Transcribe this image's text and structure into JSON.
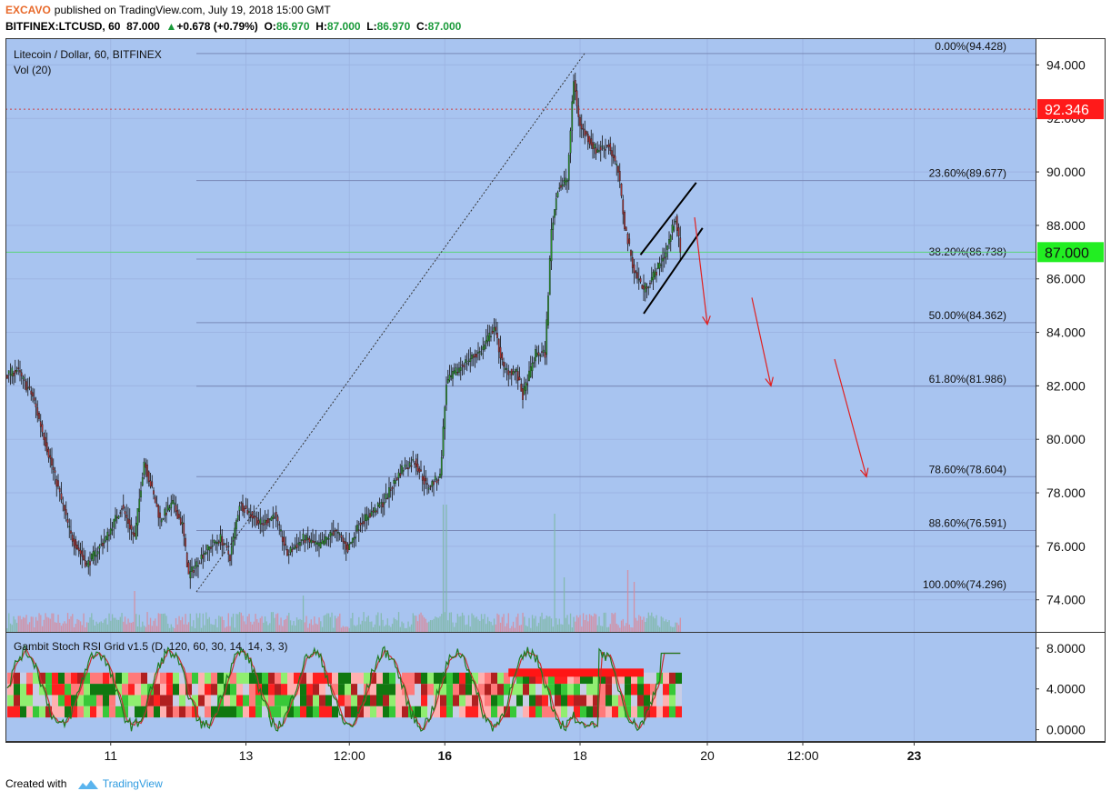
{
  "header": {
    "publisher": "EXCAVO",
    "published_text": "published on TradingView.com, July 19, 2018 15:00 GMT",
    "symbol_line": "BITFINEX:LTCUSD, 60",
    "last": "87.000",
    "change_arrow": "▲",
    "change": "+0.678 (+0.79%)",
    "o_label": "O:",
    "o_val": "86.970",
    "h_label": "H:",
    "h_val": "87.000",
    "l_label": "L:",
    "l_val": "86.970",
    "c_label": "C:",
    "c_val": "87.000"
  },
  "legend": {
    "title": "Litecoin / Dollar, 60, BITFINEX",
    "volume": "Vol (20)",
    "indicator": "Gambit Stoch RSI Grid v1.5 (D, 120, 60, 30, 14, 14, 3, 3)"
  },
  "footer": {
    "created_with": "Created with",
    "brand": "TradingView"
  },
  "colors": {
    "chart_bg": "#a8c4f0",
    "up_candle": "#2a8f2a",
    "down_candle": "#a03030",
    "price_tag_red": "#ff1a1a",
    "price_tag_green": "#22ee22",
    "fib_line": "#7a8ab8",
    "arrow": "#e02020",
    "rsi_fast": "#1f7a1f",
    "rsi_slow": "#c83030"
  },
  "chart_data": {
    "type": "candlestick",
    "title": "Litecoin / Dollar, 60, BITFINEX",
    "y_axis_ticks": [
      "94.000",
      "92.000",
      "90.000",
      "88.000",
      "86.000",
      "84.000",
      "82.000",
      "80.000",
      "78.000",
      "76.000",
      "74.000"
    ],
    "x_axis_ticks": [
      "11",
      "13",
      "12:00",
      "16",
      "18",
      "20",
      "12:00",
      "23"
    ],
    "price_tags": [
      {
        "label": "92.346",
        "value": 92.346,
        "color": "red"
      },
      {
        "label": "87.000",
        "value": 87.0,
        "color": "green"
      }
    ],
    "fibonacci_levels": [
      {
        "label": "0.00%(94.428)",
        "value": 94.428
      },
      {
        "label": "23.60%(89.677)",
        "value": 89.677
      },
      {
        "label": "38.20%(86.738)",
        "value": 86.738
      },
      {
        "label": "50.00%(84.362)",
        "value": 84.362
      },
      {
        "label": "61.80%(81.986)",
        "value": 81.986
      },
      {
        "label": "78.60%(78.604)",
        "value": 78.604
      },
      {
        "label": "88.60%(76.591)",
        "value": 76.591
      },
      {
        "label": "100.00%(74.296)",
        "value": 74.296
      }
    ],
    "ylim": [
      72.8,
      95.0
    ],
    "price_path_keypoints": [
      {
        "t": 0,
        "p": 82.4
      },
      {
        "t": 6,
        "p": 82.6
      },
      {
        "t": 16,
        "p": 81.6
      },
      {
        "t": 30,
        "p": 78.6
      },
      {
        "t": 40,
        "p": 76.4
      },
      {
        "t": 50,
        "p": 75.3
      },
      {
        "t": 62,
        "p": 76.3
      },
      {
        "t": 72,
        "p": 77.5
      },
      {
        "t": 80,
        "p": 76.3
      },
      {
        "t": 86,
        "p": 79.2
      },
      {
        "t": 96,
        "p": 77.0
      },
      {
        "t": 104,
        "p": 77.6
      },
      {
        "t": 110,
        "p": 76.8
      },
      {
        "t": 114,
        "p": 74.9
      },
      {
        "t": 124,
        "p": 75.8
      },
      {
        "t": 134,
        "p": 76.3
      },
      {
        "t": 140,
        "p": 75.6
      },
      {
        "t": 146,
        "p": 77.6
      },
      {
        "t": 160,
        "p": 76.8
      },
      {
        "t": 168,
        "p": 77.2
      },
      {
        "t": 176,
        "p": 75.7
      },
      {
        "t": 186,
        "p": 76.3
      },
      {
        "t": 196,
        "p": 76.0
      },
      {
        "t": 206,
        "p": 76.6
      },
      {
        "t": 214,
        "p": 75.9
      },
      {
        "t": 222,
        "p": 76.9
      },
      {
        "t": 236,
        "p": 77.6
      },
      {
        "t": 248,
        "p": 78.9
      },
      {
        "t": 256,
        "p": 79.2
      },
      {
        "t": 264,
        "p": 78.2
      },
      {
        "t": 272,
        "p": 78.6
      },
      {
        "t": 276,
        "p": 82.1
      },
      {
        "t": 286,
        "p": 82.8
      },
      {
        "t": 298,
        "p": 83.3
      },
      {
        "t": 306,
        "p": 84.2
      },
      {
        "t": 312,
        "p": 82.6
      },
      {
        "t": 320,
        "p": 82.5
      },
      {
        "t": 324,
        "p": 81.6
      },
      {
        "t": 332,
        "p": 83.2
      },
      {
        "t": 338,
        "p": 83.2
      },
      {
        "t": 342,
        "p": 87.8
      },
      {
        "t": 346,
        "p": 89.4
      },
      {
        "t": 352,
        "p": 89.7
      },
      {
        "t": 356,
        "p": 93.4
      },
      {
        "t": 360,
        "p": 91.7
      },
      {
        "t": 370,
        "p": 90.8
      },
      {
        "t": 378,
        "p": 91.0
      },
      {
        "t": 384,
        "p": 90.0
      },
      {
        "t": 388,
        "p": 88.0
      },
      {
        "t": 394,
        "p": 86.3
      },
      {
        "t": 400,
        "p": 85.6
      },
      {
        "t": 408,
        "p": 86.3
      },
      {
        "t": 414,
        "p": 87.0
      },
      {
        "t": 420,
        "p": 88.3
      },
      {
        "t": 423,
        "p": 87.0
      }
    ],
    "projection_arrows": [
      {
        "from": 88.3,
        "to": 84.3
      },
      {
        "from": 85.3,
        "to": 82.0
      },
      {
        "from": 83.0,
        "to": 78.6
      }
    ],
    "sub_panel": {
      "name": "Gambit Stoch RSI Grid v1.5",
      "y_axis_ticks": [
        "8.0000",
        "4.0000",
        "0.0000"
      ],
      "ylim": [
        -1.2,
        9.6
      ]
    }
  }
}
